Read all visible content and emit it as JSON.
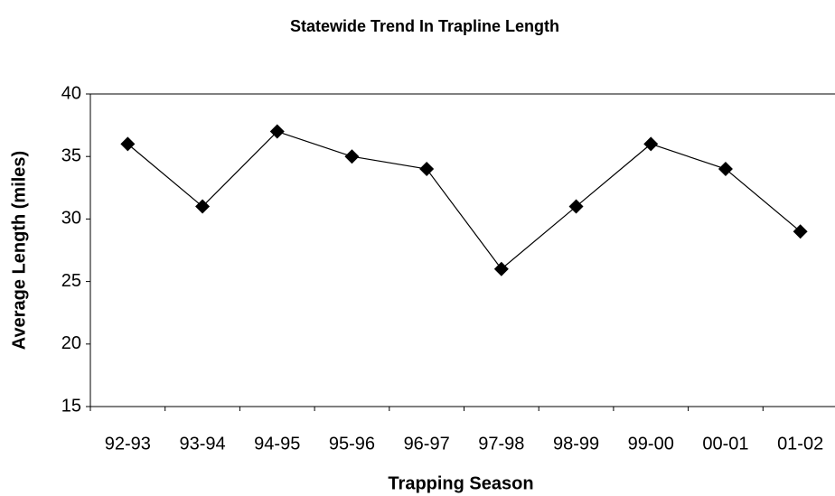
{
  "chart_data": {
    "type": "line",
    "title": "Statewide Trend In Trapline Length",
    "xlabel": "Trapping Season",
    "ylabel": "Average Length (miles)",
    "categories": [
      "92-93",
      "93-94",
      "94-95",
      "95-96",
      "96-97",
      "97-98",
      "98-99",
      "99-00",
      "00-01",
      "01-02"
    ],
    "values": [
      36,
      31,
      37,
      35,
      34,
      26,
      31,
      36,
      34,
      29
    ],
    "color": "#000000",
    "marker": "diamond",
    "ylim": [
      15,
      40
    ],
    "yticks": [
      15,
      20,
      25,
      30,
      35,
      40
    ],
    "grid": false
  }
}
